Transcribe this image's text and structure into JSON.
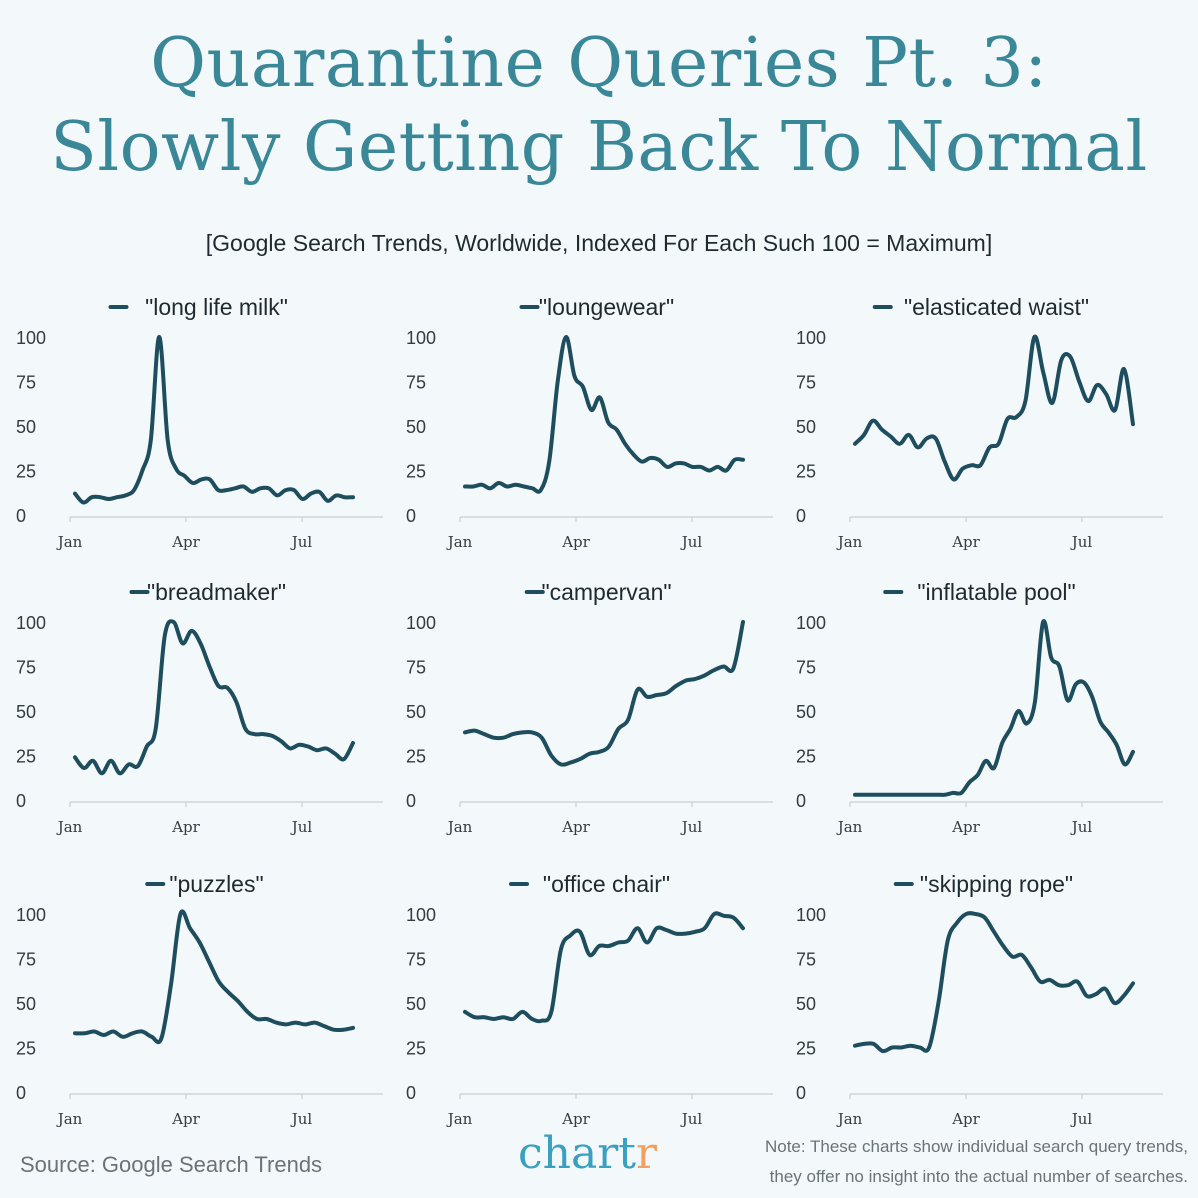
{
  "header": {
    "title_line1": "Quarantine Queries Pt. 3:",
    "title_line2": "Slowly Getting Back To Normal",
    "subtitle": "[Google Search Trends, Worldwide, Indexed For Each Such 100 = Maximum]"
  },
  "footer": {
    "source": "Source: Google Search Trends",
    "logo_main": "chart",
    "logo_accent": "r",
    "note_line1": "Note: These charts show individual search query trends,",
    "note_line2": "they offer no insight into the actual number of searches."
  },
  "colors": {
    "line": "#1e4e5e",
    "title": "#3a8798",
    "axis": "#c8d0d4",
    "background": "#f3f8fb"
  },
  "chart_data": [
    {
      "type": "line",
      "title": "\"long life milk\"",
      "x_ticks": [
        "Jan",
        "Apr",
        "Jul"
      ],
      "y_ticks": [
        0,
        25,
        50,
        75,
        100
      ],
      "ylim": [
        0,
        100
      ],
      "legend": "top",
      "series": [
        {
          "name": "\"long life milk\"",
          "values": [
            12,
            7,
            10,
            10,
            9,
            10,
            11,
            14,
            25,
            42,
            100,
            42,
            26,
            22,
            18,
            20,
            20,
            14,
            14,
            15,
            16,
            13,
            15,
            15,
            11,
            14,
            14,
            9,
            12,
            13,
            8,
            11,
            10,
            10
          ]
        }
      ]
    },
    {
      "type": "line",
      "title": "\"loungewear\"",
      "x_ticks": [
        "Jan",
        "Apr",
        "Jul"
      ],
      "y_ticks": [
        0,
        25,
        50,
        75,
        100
      ],
      "ylim": [
        0,
        100
      ],
      "legend": "top",
      "series": [
        {
          "name": "\"loungewear\"",
          "values": [
            16,
            16,
            17,
            15,
            18,
            16,
            17,
            16,
            15,
            14,
            30,
            75,
            100,
            78,
            72,
            59,
            66,
            52,
            48,
            40,
            34,
            30,
            32,
            31,
            27,
            29,
            29,
            27,
            27,
            25,
            27,
            25,
            31,
            31
          ]
        }
      ]
    },
    {
      "type": "line",
      "title": "\"elasticated waist\"",
      "x_ticks": [
        "Jan",
        "Apr",
        "Jul"
      ],
      "y_ticks": [
        0,
        25,
        50,
        75,
        100
      ],
      "ylim": [
        0,
        100
      ],
      "legend": "top",
      "series": [
        {
          "name": "\"elasticated waist\"",
          "values": [
            40,
            45,
            53,
            48,
            44,
            40,
            45,
            38,
            43,
            43,
            30,
            20,
            26,
            28,
            28,
            38,
            40,
            54,
            55,
            64,
            100,
            80,
            63,
            87,
            89,
            75,
            64,
            73,
            68,
            59,
            82,
            51
          ]
        }
      ]
    },
    {
      "type": "line",
      "title": "\"breadmaker\"",
      "x_ticks": [
        "Jan",
        "Apr",
        "Jul"
      ],
      "y_ticks": [
        0,
        25,
        50,
        75,
        100
      ],
      "ylim": [
        0,
        100
      ],
      "legend": "top",
      "series": [
        {
          "name": "\"breadmaker\"",
          "values": [
            24,
            18,
            22,
            15,
            22,
            15,
            20,
            19,
            30,
            40,
            92,
            100,
            88,
            95,
            88,
            75,
            64,
            63,
            55,
            40,
            37,
            37,
            36,
            33,
            29,
            31,
            30,
            28,
            29,
            26,
            23,
            32
          ]
        }
      ]
    },
    {
      "type": "line",
      "title": "\"campervan\"",
      "x_ticks": [
        "Jan",
        "Apr",
        "Jul"
      ],
      "y_ticks": [
        0,
        25,
        50,
        75,
        100
      ],
      "ylim": [
        0,
        100
      ],
      "legend": "top",
      "series": [
        {
          "name": "\"campervan\"",
          "values": [
            38,
            39,
            37,
            35,
            35,
            37,
            38,
            38,
            35,
            25,
            20,
            21,
            23,
            26,
            27,
            30,
            40,
            45,
            62,
            58,
            59,
            60,
            64,
            67,
            68,
            70,
            73,
            75,
            74,
            100
          ]
        }
      ]
    },
    {
      "type": "line",
      "title": "\"inflatable pool\"",
      "x_ticks": [
        "Jan",
        "Apr",
        "Jul"
      ],
      "y_ticks": [
        0,
        25,
        50,
        75,
        100
      ],
      "ylim": [
        0,
        100
      ],
      "legend": "top",
      "series": [
        {
          "name": "\"inflatable pool\"",
          "values": [
            3,
            3,
            3,
            3,
            3,
            3,
            3,
            3,
            3,
            3,
            3,
            3,
            4,
            4,
            10,
            14,
            22,
            18,
            32,
            40,
            50,
            43,
            55,
            100,
            80,
            75,
            56,
            65,
            66,
            58,
            44,
            38,
            31,
            20,
            27
          ]
        }
      ]
    },
    {
      "type": "line",
      "title": "\"puzzles\"",
      "x_ticks": [
        "Jan",
        "Apr",
        "Jul"
      ],
      "y_ticks": [
        0,
        25,
        50,
        75,
        100
      ],
      "ylim": [
        0,
        100
      ],
      "legend": "top",
      "series": [
        {
          "name": "\"puzzles\"",
          "values": [
            33,
            33,
            34,
            32,
            34,
            31,
            33,
            34,
            31,
            30,
            60,
            100,
            92,
            84,
            73,
            62,
            56,
            51,
            45,
            41,
            41,
            39,
            38,
            39,
            38,
            39,
            37,
            35,
            35,
            36
          ]
        }
      ]
    },
    {
      "type": "line",
      "title": "\"office chair\"",
      "x_ticks": [
        "Jan",
        "Apr",
        "Jul"
      ],
      "y_ticks": [
        0,
        25,
        50,
        75,
        100
      ],
      "ylim": [
        0,
        100
      ],
      "legend": "top",
      "series": [
        {
          "name": "\"office chair\"",
          "values": [
            45,
            42,
            42,
            41,
            42,
            41,
            45,
            41,
            40,
            45,
            80,
            88,
            90,
            77,
            82,
            82,
            84,
            85,
            92,
            84,
            92,
            91,
            89,
            89,
            90,
            92,
            100,
            99,
            98,
            92
          ]
        }
      ]
    },
    {
      "type": "line",
      "title": "\"skipping rope\"",
      "x_ticks": [
        "Jan",
        "Apr",
        "Jul"
      ],
      "y_ticks": [
        0,
        25,
        50,
        75,
        100
      ],
      "ylim": [
        0,
        100
      ],
      "legend": "top",
      "series": [
        {
          "name": "\"skipping rope\"",
          "values": [
            26,
            27,
            27,
            23,
            25,
            25,
            26,
            25,
            25,
            50,
            85,
            95,
            100,
            100,
            98,
            90,
            82,
            76,
            77,
            70,
            62,
            63,
            60,
            60,
            62,
            54,
            55,
            58,
            50,
            54,
            61
          ]
        }
      ]
    }
  ]
}
